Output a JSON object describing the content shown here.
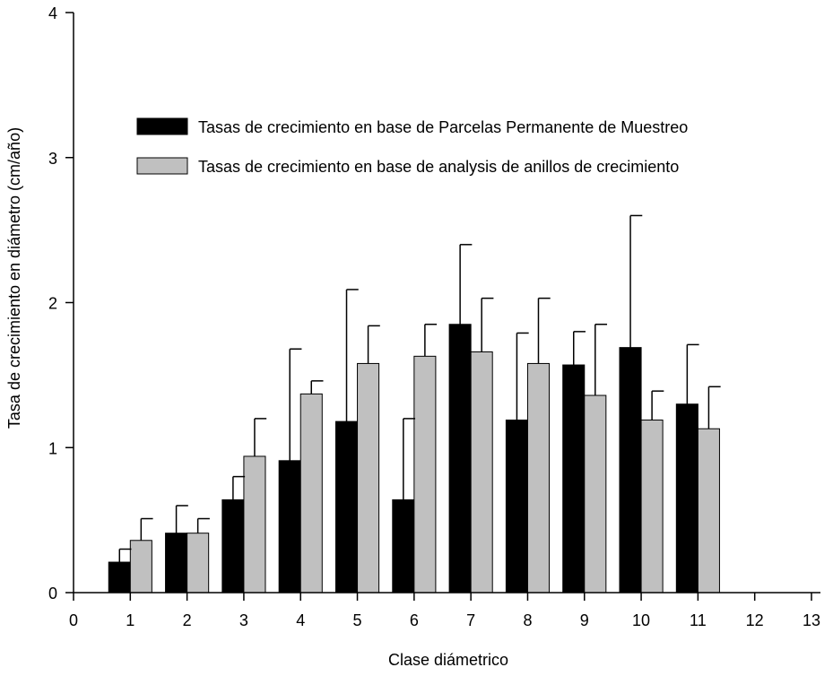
{
  "chart_data": {
    "type": "bar",
    "xlabel": "Clase diámetrico",
    "ylabel": "Tasa de crecimiento en diámetro (cm/año)",
    "xlim": [
      0,
      13
    ],
    "ylim": [
      0,
      4
    ],
    "x_ticks": [
      "0",
      "1",
      "2",
      "3",
      "4",
      "5",
      "6",
      "7",
      "8",
      "9",
      "10",
      "11",
      "12",
      "13"
    ],
    "y_ticks": [
      "0",
      "1",
      "2",
      "3",
      "4"
    ],
    "grid": false,
    "legend_position": "top-right",
    "categories": [
      1,
      2,
      3,
      4,
      5,
      6,
      7,
      8,
      9,
      10,
      11
    ],
    "series": [
      {
        "name": "Tasas de crecimiento en base de Parcelas Permanente de Muestreo",
        "color": "#000000",
        "values": [
          0.21,
          0.41,
          0.64,
          0.91,
          1.18,
          0.64,
          1.85,
          1.19,
          1.57,
          1.69,
          1.3
        ],
        "error_upper": [
          0.3,
          0.6,
          0.8,
          1.68,
          2.09,
          1.2,
          2.4,
          1.79,
          1.8,
          2.6,
          1.71
        ]
      },
      {
        "name": "Tasas de crecimiento en base de analysis de anillos de crecimiento",
        "color": "#c0c0c0",
        "values": [
          0.36,
          0.41,
          0.94,
          1.37,
          1.58,
          1.63,
          1.66,
          1.58,
          1.36,
          1.19,
          1.13
        ],
        "error_upper": [
          0.51,
          0.51,
          1.2,
          1.46,
          1.84,
          1.85,
          2.03,
          2.03,
          1.85,
          1.39,
          1.42
        ]
      }
    ]
  }
}
